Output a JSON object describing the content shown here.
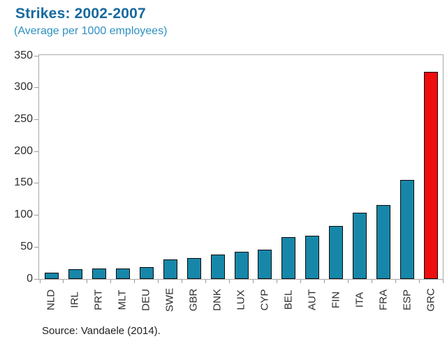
{
  "header": {
    "title": "Strikes: 2002-2007",
    "subtitle": "(Average per 1000 employees)"
  },
  "footer": {
    "source": "Source: Vandaele (2014)."
  },
  "colors": {
    "title_text": "#17699E",
    "subtitle_text": "#2E90C1",
    "bar_fill": "#1787A9",
    "bar_highlight_fill": "#EE0E0E",
    "bar_outline": "#0B0B0B",
    "plot_border": "#A8A8A8",
    "tick_mark": "#9B9B9B",
    "axis_label_text": "#2E2E2E",
    "source_text": "#1F1F1F",
    "background": "#FFFFFF"
  },
  "chart_data": {
    "type": "bar",
    "title": "Strikes: 2002-2007",
    "subtitle": "(Average per 1000 employees)",
    "source": "Source: Vandaele (2014).",
    "categories": [
      "NLD",
      "IRL",
      "PRT",
      "MLT",
      "DEU",
      "SWE",
      "GBR",
      "DNK",
      "LUX",
      "CYP",
      "BEL",
      "AUT",
      "FIN",
      "ITA",
      "FRA",
      "ESP",
      "GRC"
    ],
    "values": [
      8,
      13,
      14,
      14,
      16,
      28,
      31,
      36,
      41,
      44,
      63,
      66,
      81,
      102,
      114,
      153,
      323
    ],
    "highlight_category": "GRC",
    "xlabel": "",
    "ylabel": "",
    "ylim": [
      0,
      350
    ],
    "yticks": [
      0,
      50,
      100,
      150,
      200,
      250,
      300,
      350
    ],
    "xtick_rotation": 90,
    "grid": false,
    "legend": "none"
  }
}
